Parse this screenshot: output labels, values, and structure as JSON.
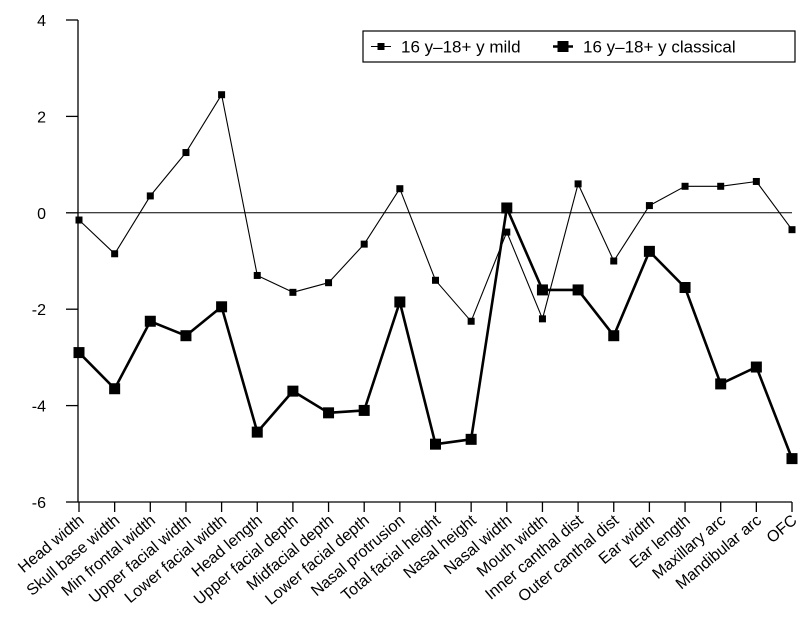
{
  "chart_data": {
    "type": "line",
    "categories": [
      "Head width",
      "Skull base width",
      "Min frontal width",
      "Upper facial width",
      "Lower facial width",
      "Head length",
      "Upper facial depth",
      "Midfacial depth",
      "Lower facial depth",
      "Nasal protrusion",
      "Total facial height",
      "Nasal height",
      "Nasal width",
      "Mouth width",
      "Inner canthal dist",
      "Outer canthal dist",
      "Ear width",
      "Ear length",
      "Maxillary arc",
      "Mandibular arc",
      "OFC"
    ],
    "series": [
      {
        "name": "16 y–18+ y mild",
        "marker": "small-square",
        "line": "thin",
        "values": [
          -0.15,
          -0.85,
          0.35,
          1.25,
          2.45,
          -1.3,
          -1.65,
          -1.45,
          -0.65,
          0.5,
          -1.4,
          -2.25,
          -0.4,
          -2.2,
          0.6,
          -1.0,
          0.15,
          0.55,
          0.55,
          0.65,
          -0.35
        ]
      },
      {
        "name": "16 y–18+ y classical",
        "marker": "large-square",
        "line": "thick",
        "values": [
          -2.9,
          -3.65,
          -2.25,
          -2.55,
          -1.95,
          -4.55,
          -3.7,
          -4.15,
          -4.1,
          -1.85,
          -4.8,
          -4.7,
          0.1,
          -1.6,
          -1.6,
          -2.55,
          -0.8,
          -1.55,
          -3.55,
          -3.2,
          -5.1
        ]
      }
    ],
    "ylim": [
      -6,
      4
    ],
    "yticks": [
      4,
      2,
      0,
      -2,
      -4,
      -6
    ],
    "zero_line": true,
    "grid": false,
    "legend_position": "top-right",
    "colors": {
      "line": "#000000",
      "background": "#ffffff"
    }
  }
}
